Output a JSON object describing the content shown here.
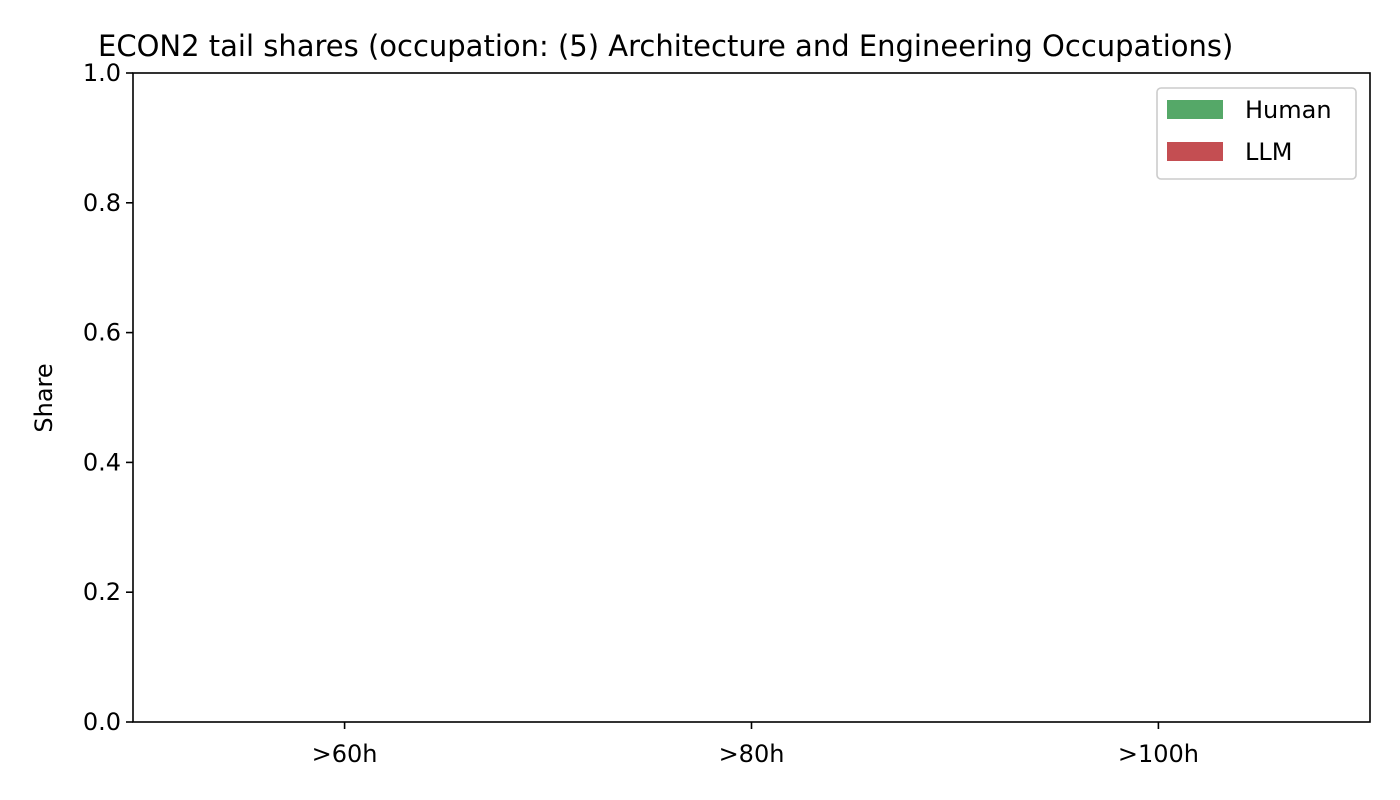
{
  "chart_data": {
    "type": "bar",
    "title": "ECON2 tail shares (occupation: (5) Architecture and Engineering Occupations)",
    "xlabel": "",
    "ylabel": "Share",
    "categories": [
      ">60h",
      ">80h",
      ">100h"
    ],
    "series": [
      {
        "name": "Human",
        "color": "#55a868",
        "values": [
          0,
          0,
          0
        ]
      },
      {
        "name": "LLM",
        "color": "#c44e52",
        "values": [
          0,
          0,
          0
        ]
      }
    ],
    "ylim": [
      0,
      1
    ],
    "yticks": [
      "0.0",
      "0.2",
      "0.4",
      "0.6",
      "0.8",
      "1.0"
    ],
    "grid": false,
    "legend_position": "top-right"
  }
}
